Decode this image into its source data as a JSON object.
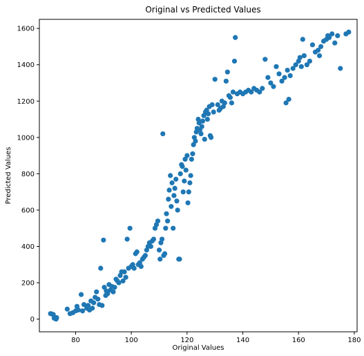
{
  "chart_data": {
    "type": "scatter",
    "title": "Original vs Predicted Values",
    "xlabel": "Original Values",
    "ylabel": "Predicted Values",
    "xlim": [
      67,
      181
    ],
    "ylim": [
      -70,
      1650
    ],
    "xticks": [
      80,
      100,
      120,
      140,
      160,
      180
    ],
    "yticks": [
      0,
      200,
      400,
      600,
      800,
      1000,
      1200,
      1400,
      1600
    ],
    "grid": false,
    "legend": "none",
    "marker_color": "#1f77b4",
    "points": [
      [
        71,
        30
      ],
      [
        71.5,
        28
      ],
      [
        72,
        25
      ],
      [
        72.3,
        5
      ],
      [
        72.8,
        2
      ],
      [
        73,
        0
      ],
      [
        73.2,
        8
      ],
      [
        77,
        55
      ],
      [
        78,
        30
      ],
      [
        79,
        35
      ],
      [
        80,
        45
      ],
      [
        80.5,
        70
      ],
      [
        81,
        50
      ],
      [
        82,
        135
      ],
      [
        82.5,
        45
      ],
      [
        83,
        80
      ],
      [
        84,
        60
      ],
      [
        84.5,
        75
      ],
      [
        85,
        50
      ],
      [
        85.5,
        100
      ],
      [
        86,
        60
      ],
      [
        86.5,
        90
      ],
      [
        87,
        120
      ],
      [
        87.5,
        150
      ],
      [
        88,
        110
      ],
      [
        88.5,
        80
      ],
      [
        89,
        280
      ],
      [
        89.5,
        75
      ],
      [
        90,
        435
      ],
      [
        90.3,
        175
      ],
      [
        90.8,
        130
      ],
      [
        91,
        155
      ],
      [
        91.5,
        140
      ],
      [
        92,
        190
      ],
      [
        92.5,
        160
      ],
      [
        93,
        180
      ],
      [
        93.5,
        150
      ],
      [
        94,
        175
      ],
      [
        94.5,
        220
      ],
      [
        95,
        210
      ],
      [
        95.5,
        200
      ],
      [
        96,
        240
      ],
      [
        96.5,
        260
      ],
      [
        97,
        210
      ],
      [
        97.5,
        260
      ],
      [
        98,
        230
      ],
      [
        98.5,
        440
      ],
      [
        99,
        280
      ],
      [
        99.5,
        500
      ],
      [
        100,
        290
      ],
      [
        100.5,
        300
      ],
      [
        101,
        280
      ],
      [
        101.5,
        360
      ],
      [
        102,
        370
      ],
      [
        102.5,
        300
      ],
      [
        103,
        310
      ],
      [
        103.5,
        290
      ],
      [
        104,
        330
      ],
      [
        104.5,
        340
      ],
      [
        105,
        350
      ],
      [
        105.5,
        380
      ],
      [
        106,
        400
      ],
      [
        106.5,
        420
      ],
      [
        107,
        400
      ],
      [
        107.5,
        430
      ],
      [
        108,
        440
      ],
      [
        108.5,
        500
      ],
      [
        109,
        520
      ],
      [
        109.5,
        540
      ],
      [
        110,
        380
      ],
      [
        110.3,
        330
      ],
      [
        110.6,
        420
      ],
      [
        111,
        440
      ],
      [
        111.3,
        1020
      ],
      [
        111.6,
        350
      ],
      [
        112,
        360
      ],
      [
        112.3,
        500
      ],
      [
        112.6,
        580
      ],
      [
        113,
        540
      ],
      [
        113.3,
        660
      ],
      [
        113.6,
        710
      ],
      [
        114,
        790
      ],
      [
        114.3,
        620
      ],
      [
        114.6,
        750
      ],
      [
        115,
        500
      ],
      [
        115.3,
        680
      ],
      [
        115.6,
        720
      ],
      [
        116,
        770
      ],
      [
        116.3,
        650
      ],
      [
        116.6,
        600
      ],
      [
        117,
        330
      ],
      [
        117.3,
        330
      ],
      [
        117.6,
        800
      ],
      [
        118,
        850
      ],
      [
        118.3,
        840
      ],
      [
        118.6,
        700
      ],
      [
        119,
        760
      ],
      [
        119.3,
        880
      ],
      [
        119.6,
        820
      ],
      [
        120,
        900
      ],
      [
        120.3,
        640
      ],
      [
        120.6,
        700
      ],
      [
        121,
        750
      ],
      [
        121.3,
        790
      ],
      [
        121.6,
        880
      ],
      [
        122,
        910
      ],
      [
        122.3,
        960
      ],
      [
        122.6,
        1000
      ],
      [
        123,
        980
      ],
      [
        123.3,
        1030
      ],
      [
        123.6,
        1050
      ],
      [
        124,
        1100
      ],
      [
        124.3,
        1080
      ],
      [
        124.6,
        1040
      ],
      [
        125,
        1020
      ],
      [
        125.3,
        1060
      ],
      [
        125.6,
        1090
      ],
      [
        126,
        1120
      ],
      [
        126.3,
        990
      ],
      [
        126.6,
        1140
      ],
      [
        127,
        1150
      ],
      [
        127.3,
        1100
      ],
      [
        127.6,
        1130
      ],
      [
        128,
        1170
      ],
      [
        128.3,
        1010
      ],
      [
        128.6,
        1000
      ],
      [
        129,
        1180
      ],
      [
        129.5,
        1140
      ],
      [
        130,
        1320
      ],
      [
        131,
        1180
      ],
      [
        131.5,
        1150
      ],
      [
        132,
        1160
      ],
      [
        132.5,
        1200
      ],
      [
        133,
        1170
      ],
      [
        133.5,
        1190
      ],
      [
        134,
        1310
      ],
      [
        134.5,
        1360
      ],
      [
        135,
        1230
      ],
      [
        135.5,
        1220
      ],
      [
        136,
        1190
      ],
      [
        136.5,
        1250
      ],
      [
        137,
        1420
      ],
      [
        137.3,
        1550
      ],
      [
        138,
        1240
      ],
      [
        139,
        1250
      ],
      [
        140,
        1240
      ],
      [
        141,
        1250
      ],
      [
        142,
        1260
      ],
      [
        143,
        1250
      ],
      [
        144,
        1270
      ],
      [
        145,
        1260
      ],
      [
        146,
        1250
      ],
      [
        147,
        1270
      ],
      [
        148,
        1430
      ],
      [
        149,
        1330
      ],
      [
        150,
        1300
      ],
      [
        151,
        1280
      ],
      [
        152,
        1390
      ],
      [
        153,
        1350
      ],
      [
        154,
        1310
      ],
      [
        155,
        1330
      ],
      [
        155.5,
        1190
      ],
      [
        156,
        1370
      ],
      [
        156.5,
        1210
      ],
      [
        157,
        1340
      ],
      [
        158,
        1380
      ],
      [
        159,
        1400
      ],
      [
        160,
        1420
      ],
      [
        160.5,
        1440
      ],
      [
        161,
        1390
      ],
      [
        161.5,
        1540
      ],
      [
        162,
        1450
      ],
      [
        163,
        1400
      ],
      [
        164,
        1420
      ],
      [
        165,
        1510
      ],
      [
        166,
        1470
      ],
      [
        167,
        1480
      ],
      [
        167.5,
        1450
      ],
      [
        168,
        1500
      ],
      [
        169,
        1530
      ],
      [
        170,
        1540
      ],
      [
        170.5,
        1560
      ],
      [
        171,
        1550
      ],
      [
        172,
        1570
      ],
      [
        173,
        1520
      ],
      [
        174,
        1560
      ],
      [
        175,
        1380
      ],
      [
        177,
        1570
      ],
      [
        178,
        1580
      ]
    ]
  }
}
